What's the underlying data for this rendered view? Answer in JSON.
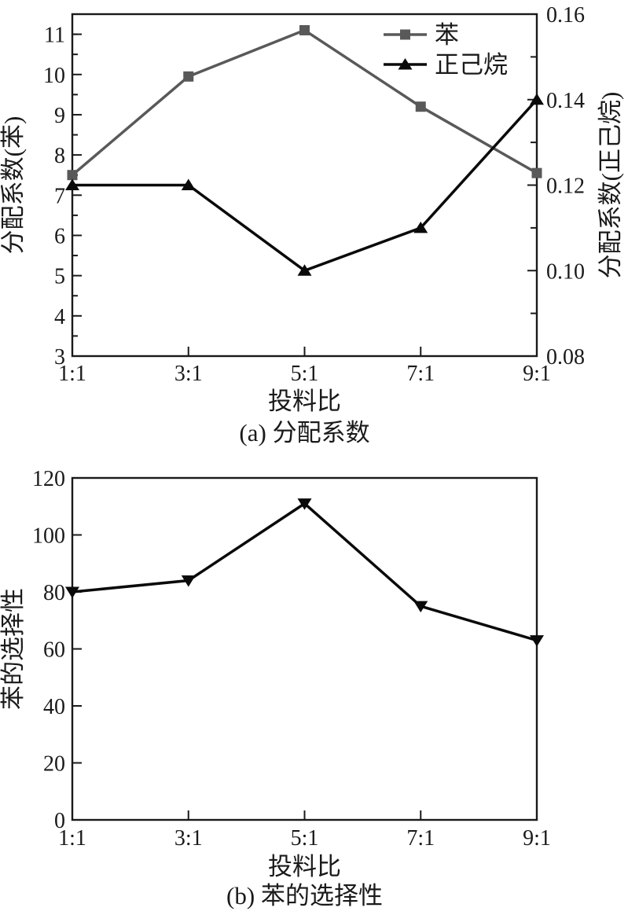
{
  "figure": {
    "background": "#ffffff",
    "text_color": "#1a1a1a",
    "axis_color": "#1a1a1a"
  },
  "chart_data": [
    {
      "id": "a",
      "type": "line",
      "caption": "(a) 分配系数",
      "xlabel": "投料比",
      "x_categories": [
        "1:1",
        "3:1",
        "5:1",
        "7:1",
        "9:1"
      ],
      "grid": false,
      "legend_position": "top-right-inside",
      "left_axis": {
        "label": "分配系数(苯)",
        "range": [
          3,
          11.5
        ],
        "ticks": [
          {
            "v": 3,
            "t": "3"
          },
          {
            "v": 4,
            "t": "4"
          },
          {
            "v": 5,
            "t": "5"
          },
          {
            "v": 6,
            "t": "6"
          },
          {
            "v": 7,
            "t": "7"
          },
          {
            "v": 8,
            "t": "8"
          },
          {
            "v": 9,
            "t": "9"
          },
          {
            "v": 10,
            "t": "10"
          },
          {
            "v": 11,
            "t": "11"
          }
        ],
        "minor": [
          3.5,
          4.5,
          5.5,
          6.5,
          7.5,
          8.5,
          9.5,
          10.5,
          11
        ]
      },
      "right_axis": {
        "label": "分配系数(正己烷)",
        "range": [
          0.08,
          0.16
        ],
        "ticks": [
          {
            "v": 0.08,
            "t": "0.08"
          },
          {
            "v": 0.1,
            "t": "0.10"
          },
          {
            "v": 0.12,
            "t": "0.12"
          },
          {
            "v": 0.14,
            "t": "0.14"
          },
          {
            "v": 0.16,
            "t": "0.16"
          }
        ],
        "minor": [
          0.09,
          0.11,
          0.13,
          0.15
        ]
      },
      "series": [
        {
          "name": "苯",
          "axis": "left",
          "marker": "square",
          "color": "#595959",
          "line_width": 3.5,
          "values": [
            7.5,
            9.95,
            11.1,
            9.2,
            7.55
          ]
        },
        {
          "name": "正己烷",
          "axis": "right",
          "marker": "triangle-up",
          "color": "#0a0a0a",
          "line_width": 3.5,
          "values": [
            0.12,
            0.12,
            0.1,
            0.11,
            0.14
          ]
        }
      ]
    },
    {
      "id": "b",
      "type": "line",
      "caption": "(b) 苯的选择性",
      "xlabel": "投料比",
      "x_categories": [
        "1:1",
        "3:1",
        "5:1",
        "7:1",
        "9:1"
      ],
      "grid": false,
      "legend_position": "none",
      "left_axis": {
        "label": "苯的选择性",
        "range": [
          0,
          120
        ],
        "ticks": [
          {
            "v": 0,
            "t": "0"
          },
          {
            "v": 20,
            "t": "20"
          },
          {
            "v": 40,
            "t": "40"
          },
          {
            "v": 60,
            "t": "60"
          },
          {
            "v": 80,
            "t": "80"
          },
          {
            "v": 100,
            "t": "100"
          },
          {
            "v": 120,
            "t": "120"
          }
        ],
        "minor": []
      },
      "series": [
        {
          "name": "苯的选择性",
          "axis": "left",
          "marker": "triangle-down",
          "color": "#0a0a0a",
          "line_width": 3.5,
          "values": [
            80,
            84,
            111,
            75,
            63
          ]
        }
      ]
    }
  ]
}
